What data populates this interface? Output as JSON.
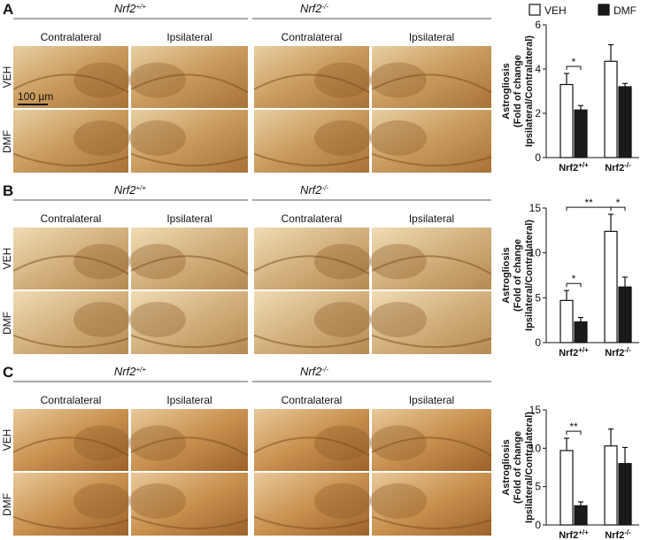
{
  "panels": [
    {
      "letter": "A",
      "genotypes": [
        {
          "name": "Nrf2",
          "sup": "+/+"
        },
        {
          "name": "Nrf2",
          "sup": "-/-"
        }
      ],
      "columns": [
        "Contralateral",
        "Ipsilateral",
        "Contralateral",
        "Ipsilateral"
      ],
      "rows": [
        "VEH",
        "DMF"
      ],
      "scale_bar": "100 µm"
    },
    {
      "letter": "B",
      "genotypes": [
        {
          "name": "Nrf2",
          "sup": "+/+"
        },
        {
          "name": "Nrf2",
          "sup": "-/-"
        }
      ],
      "columns": [
        "Contralateral",
        "Ipsilateral",
        "Contralateral",
        "Ipsilateral"
      ],
      "rows": [
        "VEH",
        "DMF"
      ]
    },
    {
      "letter": "C",
      "genotypes": [
        {
          "name": "Nrf2",
          "sup": "+/+"
        },
        {
          "name": "Nrf2",
          "sup": "-/-"
        }
      ],
      "columns": [
        "Contralateral",
        "Ipsilateral",
        "Contralateral",
        "Ipsilateral"
      ],
      "rows": [
        "VEH",
        "DMF"
      ]
    }
  ],
  "chart_data": [
    {
      "type": "bar",
      "y_label": [
        "Astrogliosis",
        "(Fold of change",
        "Ipsilateral/Contralateral)"
      ],
      "categories": [
        "Nrf2",
        "Nrf2"
      ],
      "category_superscripts": [
        "+/+",
        "-/-"
      ],
      "series": [
        {
          "name": "VEH",
          "color": "#ffffff",
          "values": [
            3.3,
            4.35
          ],
          "errors": [
            0.5,
            0.75
          ]
        },
        {
          "name": "DMF",
          "color": "#1a1a1a",
          "values": [
            2.15,
            3.2
          ],
          "errors": [
            0.2,
            0.15
          ]
        }
      ],
      "ylim": [
        0,
        6
      ],
      "yticks": [
        0,
        2,
        4,
        6
      ],
      "legend": "top",
      "significance": [
        {
          "label": "*",
          "from": [
            0,
            0
          ],
          "to": [
            1,
            0
          ]
        }
      ]
    },
    {
      "type": "bar",
      "y_label": [
        "Astrogliosis",
        "(Fold of change",
        "Ipsilateral/Contralateral)"
      ],
      "categories": [
        "Nrf2",
        "Nrf2"
      ],
      "category_superscripts": [
        "+/+",
        "-/-"
      ],
      "series": [
        {
          "name": "VEH",
          "color": "#ffffff",
          "values": [
            4.7,
            12.4
          ],
          "errors": [
            1.1,
            1.9
          ]
        },
        {
          "name": "DMF",
          "color": "#1a1a1a",
          "values": [
            2.3,
            6.2
          ],
          "errors": [
            0.5,
            1.1
          ]
        }
      ],
      "ylim": [
        0,
        15
      ],
      "yticks": [
        0,
        5,
        10,
        15
      ],
      "significance": [
        {
          "label": "*",
          "from": [
            0,
            0
          ],
          "to": [
            1,
            0
          ]
        },
        {
          "label": "**",
          "from": [
            0,
            0
          ],
          "to": [
            0,
            1
          ]
        },
        {
          "label": "*",
          "from": [
            0,
            1
          ],
          "to": [
            1,
            1
          ]
        }
      ]
    },
    {
      "type": "bar",
      "y_label": [
        "Astrogliosis",
        "(Fold of change",
        "Ipsilateral/Contralateral)"
      ],
      "categories": [
        "Nrf2",
        "Nrf2"
      ],
      "category_superscripts": [
        "+/+",
        "-/-"
      ],
      "series": [
        {
          "name": "VEH",
          "color": "#ffffff",
          "values": [
            9.7,
            10.3
          ],
          "errors": [
            1.6,
            2.2
          ]
        },
        {
          "name": "DMF",
          "color": "#1a1a1a",
          "values": [
            2.5,
            8.0
          ],
          "errors": [
            0.5,
            2.1
          ]
        }
      ],
      "ylim": [
        0,
        15
      ],
      "yticks": [
        0,
        5,
        10,
        15
      ],
      "significance": [
        {
          "label": "**",
          "from": [
            0,
            0
          ],
          "to": [
            1,
            0
          ]
        }
      ]
    }
  ]
}
